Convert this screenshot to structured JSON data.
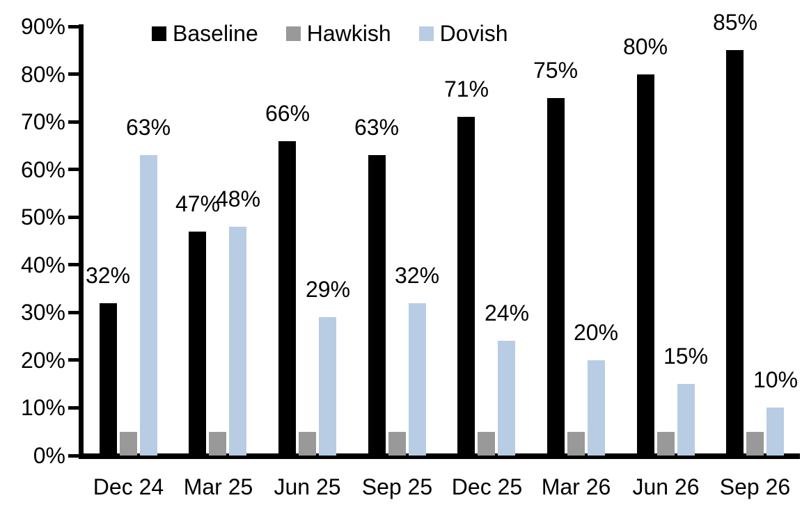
{
  "chart_data": {
    "type": "bar",
    "title": "",
    "xlabel": "",
    "ylabel": "",
    "categories": [
      "Dec 24",
      "Mar 25",
      "Jun 25",
      "Sep 25",
      "Dec 25",
      "Mar 26",
      "Jun 26",
      "Sep 26"
    ],
    "series": [
      {
        "name": "Baseline",
        "color": "#000000",
        "values": [
          32,
          47,
          66,
          63,
          71,
          75,
          80,
          85
        ],
        "show_labels": true
      },
      {
        "name": "Hawkish",
        "color": "#999999",
        "values": [
          5,
          5,
          5,
          5,
          5,
          5,
          5,
          5
        ],
        "show_labels": false
      },
      {
        "name": "Dovish",
        "color": "#B8CCE4",
        "values": [
          63,
          48,
          29,
          32,
          24,
          20,
          15,
          10
        ],
        "show_labels": true
      }
    ],
    "label_format": "{v}%",
    "ylim": [
      0,
      90
    ],
    "y_tick_step": 10,
    "y_tick_labels": [
      "0%",
      "10%",
      "20%",
      "30%",
      "40%",
      "50%",
      "60%",
      "70%",
      "80%",
      "90%"
    ],
    "grid": false,
    "legend_position": "top-inside",
    "axis_color": "#000000",
    "background": "#ffffff"
  }
}
